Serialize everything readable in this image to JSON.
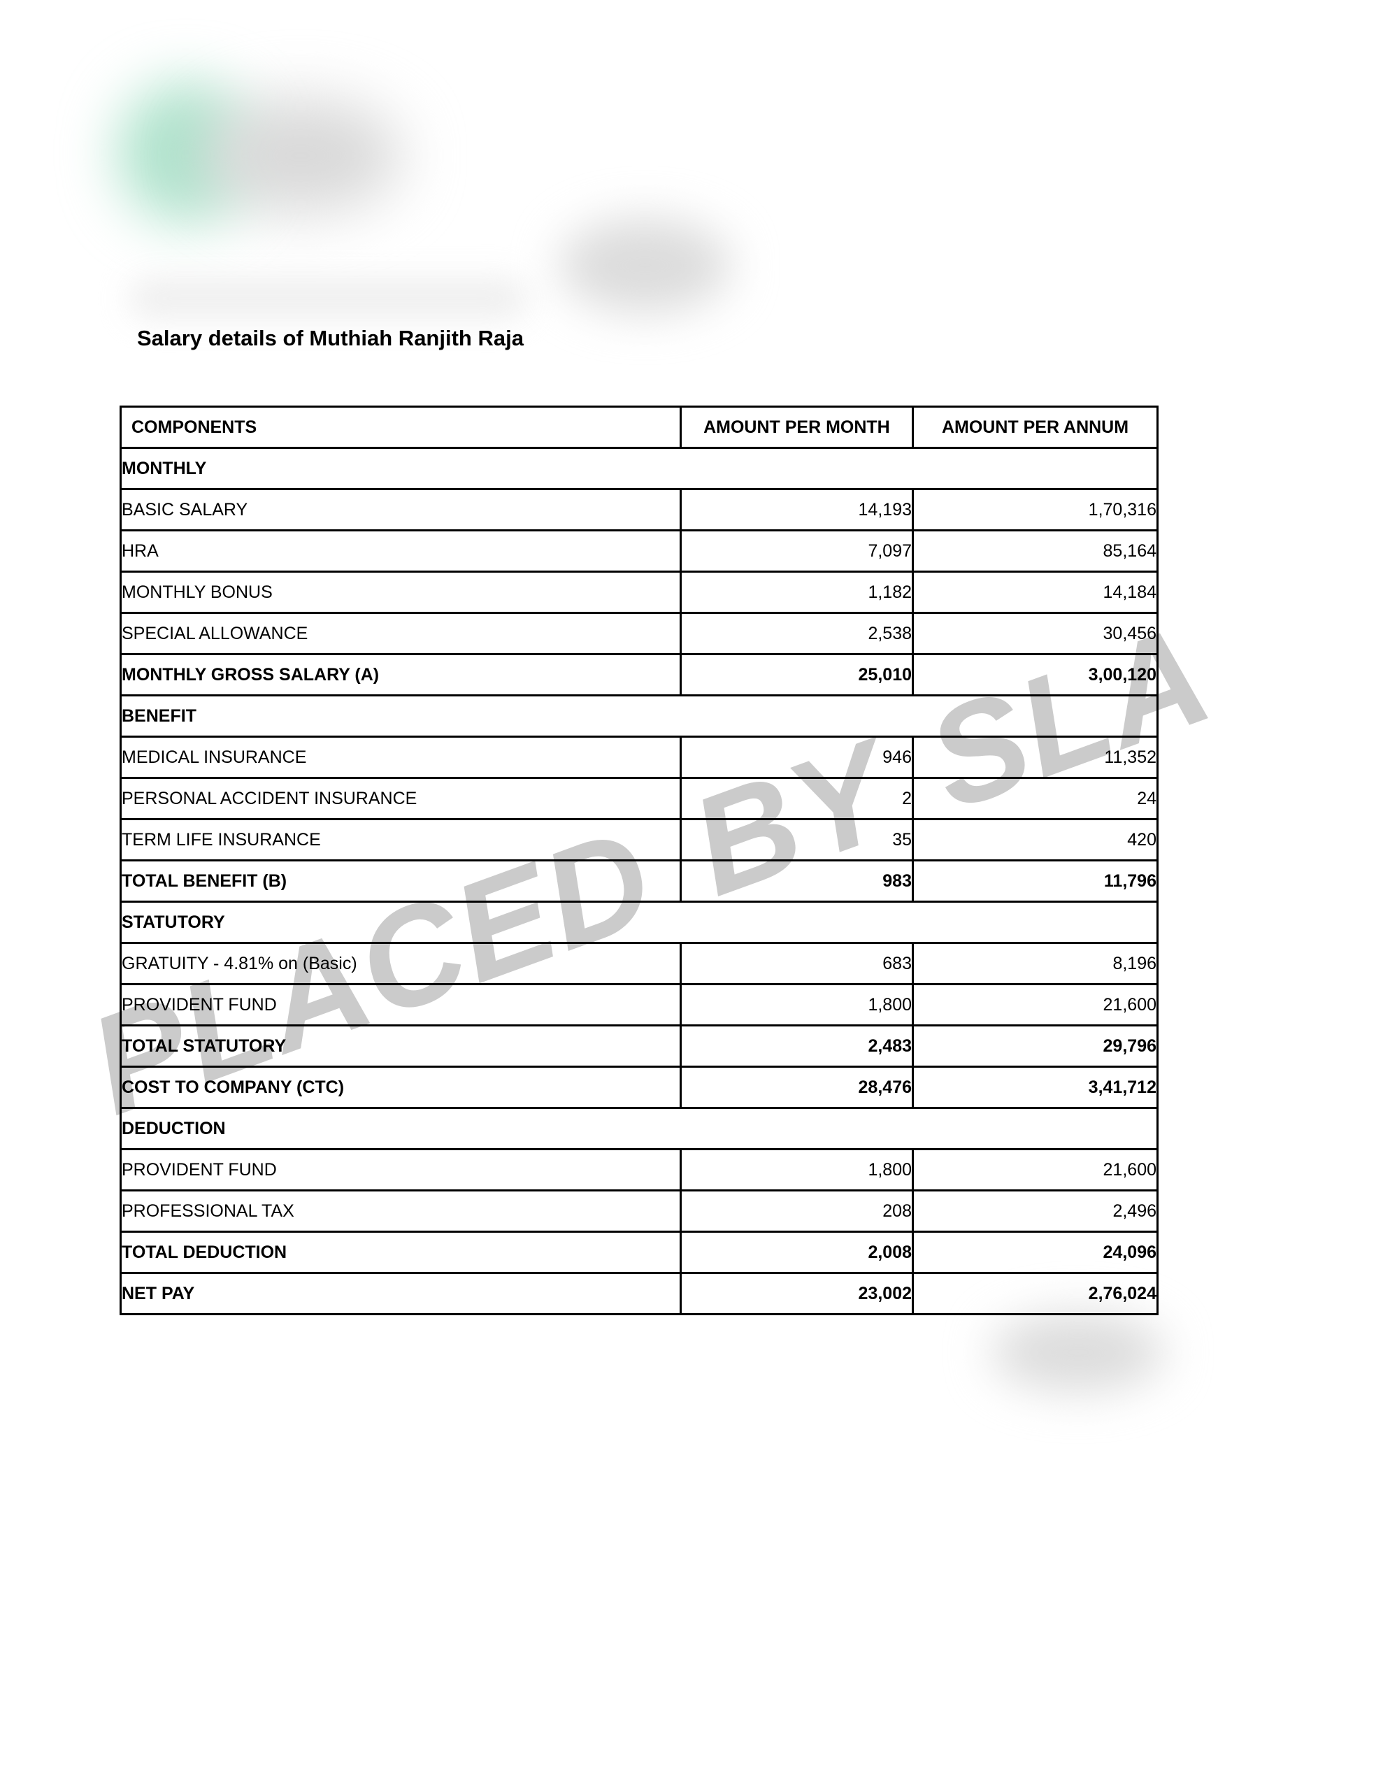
{
  "document": {
    "title": "Salary details of Muthiah Ranjith Raja"
  },
  "watermark": {
    "text": "PLACED BY SLA",
    "color": "#cbcbcb"
  },
  "colors": {
    "logo_blur_green": "#aee3cc",
    "logo_blur_gray": "#d9d9d9",
    "redacted_line_gray": "#ececec",
    "redacted_center_gray": "#dcdcdc",
    "redacted_bottom_gray": "#dcdcdc",
    "table_border": "#000000"
  },
  "table": {
    "headers": [
      "COMPONENTS",
      "AMOUNT PER MONTH",
      "AMOUNT PER ANNUM"
    ],
    "rows": [
      {
        "type": "section",
        "label": "MONTHLY"
      },
      {
        "type": "data",
        "label": "BASIC SALARY",
        "month": "14,193",
        "annum": "1,70,316"
      },
      {
        "type": "data",
        "label": "HRA",
        "month": "7,097",
        "annum": "85,164"
      },
      {
        "type": "data",
        "label": "MONTHLY BONUS",
        "month": "1,182",
        "annum": "14,184"
      },
      {
        "type": "data",
        "label": "SPECIAL ALLOWANCE",
        "month": "2,538",
        "annum": "30,456"
      },
      {
        "type": "total",
        "label": "MONTHLY GROSS SALARY (A)",
        "month": "25,010",
        "annum": "3,00,120"
      },
      {
        "type": "section",
        "label": "BENEFIT"
      },
      {
        "type": "data",
        "label": "MEDICAL INSURANCE",
        "month": "946",
        "annum": "11,352"
      },
      {
        "type": "data",
        "label": "PERSONAL ACCIDENT INSURANCE",
        "month": "2",
        "annum": "24"
      },
      {
        "type": "data",
        "label": "TERM LIFE INSURANCE",
        "month": "35",
        "annum": "420"
      },
      {
        "type": "total",
        "label": "TOTAL BENEFIT (B)",
        "month": "983",
        "annum": "11,796"
      },
      {
        "type": "section",
        "label": "STATUTORY"
      },
      {
        "type": "data",
        "label": "GRATUITY - 4.81% on (Basic)",
        "month": "683",
        "annum": "8,196"
      },
      {
        "type": "data",
        "label": "PROVIDENT FUND",
        "month": "1,800",
        "annum": "21,600"
      },
      {
        "type": "total",
        "label": "TOTAL STATUTORY",
        "month": "2,483",
        "annum": "29,796"
      },
      {
        "type": "total",
        "label": "COST TO COMPANY (CTC)",
        "month": "28,476",
        "annum": "3,41,712"
      },
      {
        "type": "section",
        "label": "DEDUCTION"
      },
      {
        "type": "data",
        "label": "PROVIDENT FUND",
        "month": "1,800",
        "annum": "21,600"
      },
      {
        "type": "data",
        "label": "PROFESSIONAL TAX",
        "month": "208",
        "annum": "2,496"
      },
      {
        "type": "total",
        "label": "TOTAL DEDUCTION",
        "month": "2,008",
        "annum": "24,096"
      },
      {
        "type": "total",
        "label": "NET PAY",
        "month": "23,002",
        "annum": "2,76,024"
      }
    ]
  }
}
